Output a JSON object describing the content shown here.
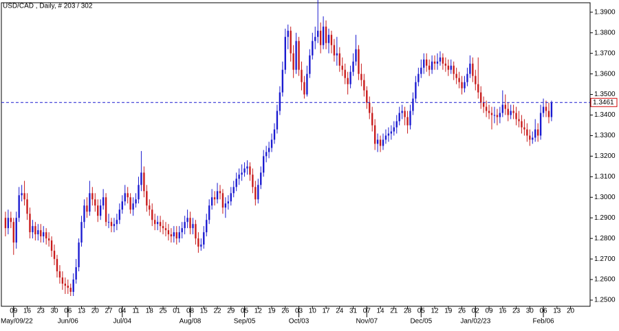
{
  "chart_data": {
    "type": "candlestick",
    "title": "USD/CAD , Daily, # 203 / 302",
    "up_color": "#1a1ad0",
    "down_color": "#c81a1a",
    "current_price": 1.3461,
    "current_color": "#1a1ad0",
    "current_label_color": "#d00000",
    "ylim": [
      1.247,
      1.3946
    ],
    "yticks": [
      {
        "value": 1.25,
        "label": "1.2500"
      },
      {
        "value": 1.26,
        "label": "1.2600"
      },
      {
        "value": 1.27,
        "label": "1.2700"
      },
      {
        "value": 1.28,
        "label": "1.2800"
      },
      {
        "value": 1.29,
        "label": "1.2900"
      },
      {
        "value": 1.3,
        "label": "1.3000"
      },
      {
        "value": 1.31,
        "label": "1.3100"
      },
      {
        "value": 1.32,
        "label": "1.3200"
      },
      {
        "value": 1.33,
        "label": "1.3300"
      },
      {
        "value": 1.34,
        "label": "1.3400"
      },
      {
        "value": 1.35,
        "label": "1.3500"
      },
      {
        "value": 1.36,
        "label": "1.3600"
      },
      {
        "value": 1.37,
        "label": "1.3700"
      },
      {
        "value": 1.38,
        "label": "1.3800"
      },
      {
        "value": 1.39,
        "label": "1.3900"
      }
    ],
    "xlim": [
      -1.5,
      215.2
    ],
    "xticks": [
      {
        "value": 3,
        "label": "09"
      },
      {
        "value": 8,
        "label": "16"
      },
      {
        "value": 13,
        "label": "23"
      },
      {
        "value": 18,
        "label": "30"
      },
      {
        "value": 23,
        "label": "06"
      },
      {
        "value": 28,
        "label": "13"
      },
      {
        "value": 33,
        "label": "20"
      },
      {
        "value": 38,
        "label": "27"
      },
      {
        "value": 43,
        "label": "04"
      },
      {
        "value": 48,
        "label": "11"
      },
      {
        "value": 53,
        "label": "18"
      },
      {
        "value": 58,
        "label": "25"
      },
      {
        "value": 63,
        "label": "01"
      },
      {
        "value": 68,
        "label": "08"
      },
      {
        "value": 73,
        "label": "15"
      },
      {
        "value": 78,
        "label": "22"
      },
      {
        "value": 83,
        "label": "29"
      },
      {
        "value": 88,
        "label": "05"
      },
      {
        "value": 93,
        "label": "12"
      },
      {
        "value": 98,
        "label": "19"
      },
      {
        "value": 103,
        "label": "26"
      },
      {
        "value": 108,
        "label": "03"
      },
      {
        "value": 113,
        "label": "10"
      },
      {
        "value": 118,
        "label": "17"
      },
      {
        "value": 123,
        "label": "24"
      },
      {
        "value": 128,
        "label": "31"
      },
      {
        "value": 133,
        "label": "07"
      },
      {
        "value": 138,
        "label": "14"
      },
      {
        "value": 143,
        "label": "21"
      },
      {
        "value": 148,
        "label": "28"
      },
      {
        "value": 153,
        "label": "05"
      },
      {
        "value": 158,
        "label": "12"
      },
      {
        "value": 163,
        "label": "19"
      },
      {
        "value": 168,
        "label": "26"
      },
      {
        "value": 173,
        "label": "02"
      },
      {
        "value": 178,
        "label": "09"
      },
      {
        "value": 183,
        "label": "16"
      },
      {
        "value": 188,
        "label": "23"
      },
      {
        "value": 193,
        "label": "30"
      },
      {
        "value": 198,
        "label": "06"
      },
      {
        "value": 203,
        "label": "13"
      },
      {
        "value": 208,
        "label": "20"
      }
    ],
    "month_ticks": [
      {
        "value": 3,
        "label": "May/09/22"
      },
      {
        "value": 23,
        "label": "Jun/06"
      },
      {
        "value": 43,
        "label": "Jul/04"
      },
      {
        "value": 68,
        "label": "Aug/08"
      },
      {
        "value": 88,
        "label": "Sep/05"
      },
      {
        "value": 108,
        "label": "Oct/03"
      },
      {
        "value": 133,
        "label": "Nov/07"
      },
      {
        "value": 153,
        "label": "Dec/05"
      },
      {
        "value": 173,
        "label": "Jan/02/23"
      },
      {
        "value": 198,
        "label": "Feb/06"
      }
    ],
    "ohlc": [
      [
        1.29,
        1.293,
        1.281,
        1.285
      ],
      [
        1.285,
        1.294,
        1.282,
        1.29
      ],
      [
        1.29,
        1.293,
        1.285,
        1.288
      ],
      [
        1.288,
        1.29,
        1.272,
        1.278
      ],
      [
        1.278,
        1.293,
        1.275,
        1.29
      ],
      [
        1.29,
        1.305,
        1.288,
        1.301
      ],
      [
        1.301,
        1.306,
        1.298,
        1.302
      ],
      [
        1.302,
        1.308,
        1.296,
        1.299
      ],
      [
        1.299,
        1.302,
        1.289,
        1.292
      ],
      [
        1.292,
        1.295,
        1.28,
        1.283
      ],
      [
        1.283,
        1.289,
        1.28,
        1.286
      ],
      [
        1.286,
        1.288,
        1.279,
        1.282
      ],
      [
        1.282,
        1.287,
        1.279,
        1.284
      ],
      [
        1.284,
        1.287,
        1.278,
        1.281
      ],
      [
        1.281,
        1.286,
        1.278,
        1.283
      ],
      [
        1.283,
        1.285,
        1.277,
        1.28
      ],
      [
        1.28,
        1.283,
        1.276,
        1.279
      ],
      [
        1.279,
        1.281,
        1.271,
        1.274
      ],
      [
        1.274,
        1.277,
        1.267,
        1.27
      ],
      [
        1.27,
        1.272,
        1.261,
        1.264
      ],
      [
        1.264,
        1.267,
        1.258,
        1.261
      ],
      [
        1.261,
        1.264,
        1.255,
        1.258
      ],
      [
        1.258,
        1.261,
        1.253,
        1.257
      ],
      [
        1.257,
        1.26,
        1.253,
        1.256
      ],
      [
        1.256,
        1.258,
        1.252,
        1.254
      ],
      [
        1.254,
        1.263,
        1.252,
        1.26
      ],
      [
        1.26,
        1.27,
        1.258,
        1.266
      ],
      [
        1.266,
        1.28,
        1.264,
        1.278
      ],
      [
        1.278,
        1.291,
        1.276,
        1.288
      ],
      [
        1.288,
        1.299,
        1.285,
        1.296
      ],
      [
        1.296,
        1.3,
        1.29,
        1.293
      ],
      [
        1.293,
        1.308,
        1.291,
        1.302
      ],
      [
        1.302,
        1.305,
        1.296,
        1.299
      ],
      [
        1.299,
        1.302,
        1.293,
        1.296
      ],
      [
        1.296,
        1.299,
        1.288,
        1.291
      ],
      [
        1.291,
        1.299,
        1.289,
        1.296
      ],
      [
        1.296,
        1.304,
        1.294,
        1.3
      ],
      [
        1.3,
        1.302,
        1.286,
        1.288
      ],
      [
        1.288,
        1.292,
        1.285,
        1.288
      ],
      [
        1.288,
        1.29,
        1.283,
        1.286
      ],
      [
        1.286,
        1.29,
        1.283,
        1.287
      ],
      [
        1.287,
        1.292,
        1.284,
        1.289
      ],
      [
        1.289,
        1.297,
        1.287,
        1.294
      ],
      [
        1.294,
        1.301,
        1.292,
        1.298
      ],
      [
        1.298,
        1.306,
        1.296,
        1.302
      ],
      [
        1.302,
        1.305,
        1.297,
        1.3
      ],
      [
        1.3,
        1.302,
        1.292,
        1.294
      ],
      [
        1.294,
        1.3,
        1.291,
        1.297
      ],
      [
        1.297,
        1.302,
        1.295,
        1.299
      ],
      [
        1.299,
        1.31,
        1.297,
        1.306
      ],
      [
        1.306,
        1.3225,
        1.303,
        1.312
      ],
      [
        1.312,
        1.315,
        1.3,
        1.303
      ],
      [
        1.303,
        1.306,
        1.293,
        1.296
      ],
      [
        1.296,
        1.299,
        1.291,
        1.294
      ],
      [
        1.294,
        1.297,
        1.286,
        1.289
      ],
      [
        1.289,
        1.292,
        1.284,
        1.287
      ],
      [
        1.287,
        1.291,
        1.284,
        1.288
      ],
      [
        1.288,
        1.291,
        1.283,
        1.286
      ],
      [
        1.286,
        1.289,
        1.282,
        1.285
      ],
      [
        1.285,
        1.288,
        1.281,
        1.284
      ],
      [
        1.284,
        1.287,
        1.279,
        1.282
      ],
      [
        1.282,
        1.285,
        1.278,
        1.281
      ],
      [
        1.281,
        1.286,
        1.278,
        1.283
      ],
      [
        1.283,
        1.286,
        1.277,
        1.28
      ],
      [
        1.28,
        1.286,
        1.278,
        1.283
      ],
      [
        1.283,
        1.288,
        1.28,
        1.285
      ],
      [
        1.285,
        1.291,
        1.282,
        1.288
      ],
      [
        1.288,
        1.294,
        1.285,
        1.29
      ],
      [
        1.29,
        1.293,
        1.282,
        1.285
      ],
      [
        1.285,
        1.29,
        1.282,
        1.287
      ],
      [
        1.287,
        1.289,
        1.277,
        1.28
      ],
      [
        1.28,
        1.283,
        1.273,
        1.276
      ],
      [
        1.276,
        1.28,
        1.274,
        1.277
      ],
      [
        1.277,
        1.286,
        1.275,
        1.283
      ],
      [
        1.283,
        1.292,
        1.281,
        1.289
      ],
      [
        1.289,
        1.299,
        1.287,
        1.296
      ],
      [
        1.296,
        1.304,
        1.294,
        1.3
      ],
      [
        1.3,
        1.303,
        1.296,
        1.299
      ],
      [
        1.299,
        1.307,
        1.297,
        1.303
      ],
      [
        1.303,
        1.306,
        1.299,
        1.302
      ],
      [
        1.302,
        1.304,
        1.292,
        1.295
      ],
      [
        1.295,
        1.3,
        1.29,
        1.297
      ],
      [
        1.297,
        1.301,
        1.294,
        1.298
      ],
      [
        1.298,
        1.305,
        1.296,
        1.302
      ],
      [
        1.302,
        1.308,
        1.3,
        1.305
      ],
      [
        1.305,
        1.312,
        1.303,
        1.309
      ],
      [
        1.309,
        1.314,
        1.306,
        1.311
      ],
      [
        1.311,
        1.316,
        1.308,
        1.312
      ],
      [
        1.312,
        1.317,
        1.31,
        1.314
      ],
      [
        1.314,
        1.318,
        1.311,
        1.315
      ],
      [
        1.315,
        1.317,
        1.308,
        1.311
      ],
      [
        1.311,
        1.314,
        1.302,
        1.305
      ],
      [
        1.305,
        1.308,
        1.296,
        1.299
      ],
      [
        1.299,
        1.309,
        1.297,
        1.306
      ],
      [
        1.306,
        1.315,
        1.304,
        1.312
      ],
      [
        1.312,
        1.323,
        1.31,
        1.32
      ],
      [
        1.32,
        1.325,
        1.317,
        1.322
      ],
      [
        1.322,
        1.327,
        1.319,
        1.324
      ],
      [
        1.324,
        1.331,
        1.322,
        1.328
      ],
      [
        1.328,
        1.336,
        1.326,
        1.333
      ],
      [
        1.333,
        1.345,
        1.331,
        1.342
      ],
      [
        1.342,
        1.354,
        1.34,
        1.351
      ],
      [
        1.351,
        1.366,
        1.349,
        1.362
      ],
      [
        1.362,
        1.382,
        1.36,
        1.378
      ],
      [
        1.378,
        1.384,
        1.372,
        1.381
      ],
      [
        1.381,
        1.383,
        1.366,
        1.37
      ],
      [
        1.37,
        1.374,
        1.358,
        1.362
      ],
      [
        1.362,
        1.38,
        1.36,
        1.376
      ],
      [
        1.376,
        1.378,
        1.359,
        1.362
      ],
      [
        1.362,
        1.366,
        1.352,
        1.356
      ],
      [
        1.356,
        1.359,
        1.348,
        1.35
      ],
      [
        1.35,
        1.364,
        1.349,
        1.36
      ],
      [
        1.36,
        1.372,
        1.358,
        1.369
      ],
      [
        1.369,
        1.38,
        1.367,
        1.376
      ],
      [
        1.376,
        1.383,
        1.372,
        1.378
      ],
      [
        1.378,
        1.3975,
        1.375,
        1.381
      ],
      [
        1.381,
        1.385,
        1.37,
        1.374
      ],
      [
        1.374,
        1.388,
        1.372,
        1.383
      ],
      [
        1.383,
        1.386,
        1.372,
        1.375
      ],
      [
        1.375,
        1.382,
        1.37,
        1.379
      ],
      [
        1.379,
        1.381,
        1.37,
        1.374
      ],
      [
        1.374,
        1.377,
        1.366,
        1.369
      ],
      [
        1.369,
        1.378,
        1.364,
        1.37
      ],
      [
        1.37,
        1.373,
        1.361,
        1.364
      ],
      [
        1.364,
        1.368,
        1.359,
        1.362
      ],
      [
        1.362,
        1.365,
        1.355,
        1.358
      ],
      [
        1.358,
        1.361,
        1.35,
        1.355
      ],
      [
        1.355,
        1.364,
        1.353,
        1.361
      ],
      [
        1.361,
        1.37,
        1.359,
        1.366
      ],
      [
        1.366,
        1.379,
        1.364,
        1.372
      ],
      [
        1.372,
        1.374,
        1.357,
        1.36
      ],
      [
        1.36,
        1.365,
        1.354,
        1.357
      ],
      [
        1.357,
        1.36,
        1.349,
        1.352
      ],
      [
        1.352,
        1.354,
        1.343,
        1.346
      ],
      [
        1.346,
        1.349,
        1.338,
        1.341
      ],
      [
        1.341,
        1.344,
        1.332,
        1.335
      ],
      [
        1.335,
        1.338,
        1.323,
        1.326
      ],
      [
        1.326,
        1.331,
        1.322,
        1.328
      ],
      [
        1.328,
        1.33,
        1.322,
        1.325
      ],
      [
        1.325,
        1.331,
        1.323,
        1.328
      ],
      [
        1.328,
        1.333,
        1.326,
        1.33
      ],
      [
        1.33,
        1.334,
        1.327,
        1.331
      ],
      [
        1.331,
        1.335,
        1.328,
        1.332
      ],
      [
        1.332,
        1.337,
        1.33,
        1.334
      ],
      [
        1.334,
        1.34,
        1.331,
        1.337
      ],
      [
        1.337,
        1.344,
        1.335,
        1.341
      ],
      [
        1.341,
        1.345,
        1.338,
        1.342
      ],
      [
        1.342,
        1.344,
        1.335,
        1.339
      ],
      [
        1.339,
        1.342,
        1.331,
        1.335
      ],
      [
        1.335,
        1.345,
        1.333,
        1.342
      ],
      [
        1.342,
        1.351,
        1.34,
        1.348
      ],
      [
        1.348,
        1.359,
        1.346,
        1.356
      ],
      [
        1.356,
        1.363,
        1.354,
        1.36
      ],
      [
        1.36,
        1.367,
        1.358,
        1.363
      ],
      [
        1.363,
        1.37,
        1.36,
        1.367
      ],
      [
        1.367,
        1.37,
        1.361,
        1.364
      ],
      [
        1.364,
        1.367,
        1.359,
        1.362
      ],
      [
        1.362,
        1.369,
        1.36,
        1.366
      ],
      [
        1.366,
        1.369,
        1.362,
        1.365
      ],
      [
        1.365,
        1.37,
        1.362,
        1.366
      ],
      [
        1.366,
        1.371,
        1.364,
        1.368
      ],
      [
        1.368,
        1.37,
        1.362,
        1.365
      ],
      [
        1.365,
        1.368,
        1.361,
        1.364
      ],
      [
        1.364,
        1.367,
        1.359,
        1.362
      ],
      [
        1.362,
        1.367,
        1.36,
        1.364
      ],
      [
        1.364,
        1.366,
        1.357,
        1.36
      ],
      [
        1.36,
        1.363,
        1.355,
        1.358
      ],
      [
        1.358,
        1.361,
        1.353,
        1.356
      ],
      [
        1.356,
        1.359,
        1.35,
        1.353
      ],
      [
        1.353,
        1.359,
        1.351,
        1.356
      ],
      [
        1.356,
        1.363,
        1.354,
        1.36
      ],
      [
        1.36,
        1.369,
        1.358,
        1.365
      ],
      [
        1.365,
        1.368,
        1.356,
        1.359
      ],
      [
        1.359,
        1.362,
        1.352,
        1.355
      ],
      [
        1.355,
        1.368,
        1.348,
        1.351
      ],
      [
        1.351,
        1.354,
        1.343,
        1.346
      ],
      [
        1.346,
        1.349,
        1.341,
        1.344
      ],
      [
        1.344,
        1.347,
        1.339,
        1.342
      ],
      [
        1.342,
        1.345,
        1.338,
        1.341
      ],
      [
        1.341,
        1.344,
        1.333,
        1.34
      ],
      [
        1.34,
        1.344,
        1.336,
        1.34
      ],
      [
        1.34,
        1.343,
        1.335,
        1.339
      ],
      [
        1.339,
        1.344,
        1.336,
        1.341
      ],
      [
        1.341,
        1.352,
        1.339,
        1.345
      ],
      [
        1.345,
        1.35,
        1.34,
        1.343
      ],
      [
        1.343,
        1.346,
        1.337,
        1.34
      ],
      [
        1.34,
        1.345,
        1.338,
        1.342
      ],
      [
        1.342,
        1.345,
        1.338,
        1.341
      ],
      [
        1.341,
        1.344,
        1.335,
        1.338
      ],
      [
        1.338,
        1.342,
        1.334,
        1.337
      ],
      [
        1.337,
        1.34,
        1.331,
        1.334
      ],
      [
        1.334,
        1.338,
        1.33,
        1.333
      ],
      [
        1.333,
        1.336,
        1.327,
        1.33
      ],
      [
        1.33,
        1.333,
        1.325,
        1.328
      ],
      [
        1.328,
        1.332,
        1.326,
        1.329
      ],
      [
        1.329,
        1.338,
        1.327,
        1.333
      ],
      [
        1.333,
        1.336,
        1.327,
        1.33
      ],
      [
        1.33,
        1.345,
        1.328,
        1.341
      ],
      [
        1.341,
        1.348,
        1.339,
        1.344
      ],
      [
        1.344,
        1.347,
        1.339,
        1.342
      ],
      [
        1.342,
        1.346,
        1.336,
        1.339
      ],
      [
        1.339,
        1.347,
        1.337,
        1.3461
      ]
    ]
  }
}
